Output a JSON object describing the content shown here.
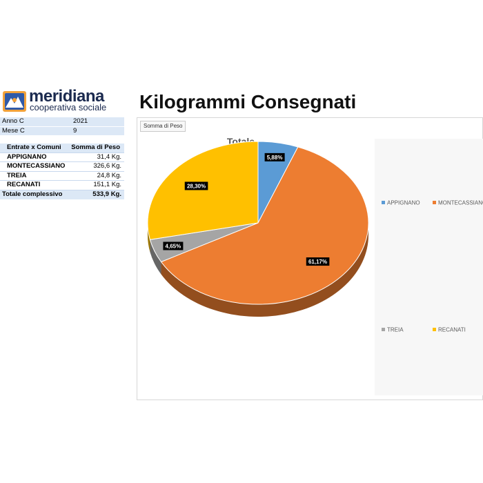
{
  "logo": {
    "name": "meridiana",
    "subtitle": "cooperativa sociale"
  },
  "page_title": "Kilogrammi Consegnati",
  "filters": [
    {
      "label": "Anno C",
      "value": "2021"
    },
    {
      "label": "Mese C",
      "value": "9"
    }
  ],
  "pivot": {
    "headers": [
      "Entrate x Comuni",
      "Somma di Peso"
    ],
    "rows": [
      {
        "label": "APPIGNANO",
        "value": "31,4 Kg."
      },
      {
        "label": "MONTECASSIANO",
        "value": "326,6 Kg."
      },
      {
        "label": "TREIA",
        "value": "24,8 Kg."
      },
      {
        "label": "RECANATI",
        "value": "151,1 Kg."
      }
    ],
    "total": {
      "label": "Totale complessivo",
      "value": "533,9 Kg."
    }
  },
  "chart_field_button": "Somma di Peso",
  "colors": {
    "appignano": "#5b9bd5",
    "montecassiano": "#ed7d31",
    "treia": "#a5a5a5",
    "recanati": "#ffc000"
  },
  "chart_data": {
    "type": "pie",
    "title": "Totale",
    "categories": [
      "APPIGNANO",
      "MONTECASSIANO",
      "TREIA",
      "RECANATI"
    ],
    "values": [
      31.4,
      326.6,
      24.8,
      151.1
    ],
    "data_labels": [
      "5,88%",
      "61,17%",
      "4,65%",
      "28,30%"
    ],
    "legend_position": "right",
    "style": "3d"
  }
}
